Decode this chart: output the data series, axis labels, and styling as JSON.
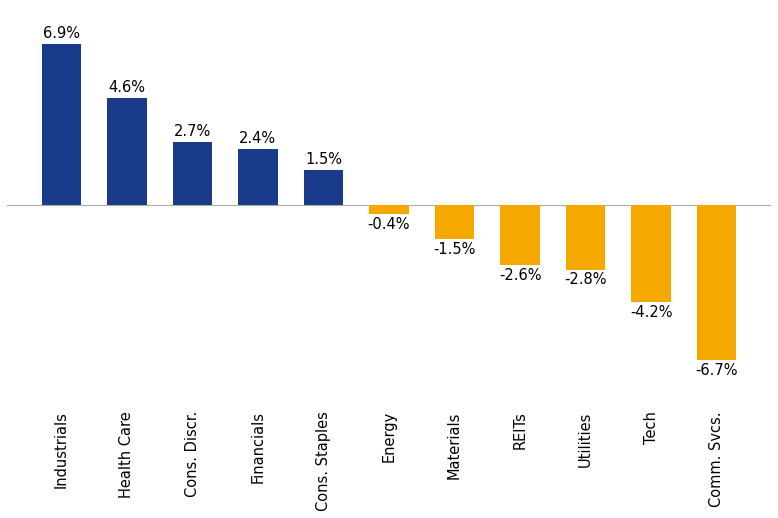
{
  "categories": [
    "Industrials",
    "Health Care",
    "Cons. Discr.",
    "Financials",
    "Cons. Staples",
    "Energy",
    "Materials",
    "REITs",
    "Utilities",
    "Tech",
    "Comm. Svcs."
  ],
  "values": [
    6.9,
    4.6,
    2.7,
    2.4,
    1.5,
    -0.4,
    -1.5,
    -2.6,
    -2.8,
    -4.2,
    -6.7
  ],
  "bar_colors_positive": "#1a3a8a",
  "bar_colors_negative": "#f5a800",
  "label_fontsize": 10.5,
  "tick_fontsize": 10.5,
  "background_color": "#ffffff",
  "bar_width": 0.6,
  "ylim": [
    -8.5,
    8.5
  ]
}
